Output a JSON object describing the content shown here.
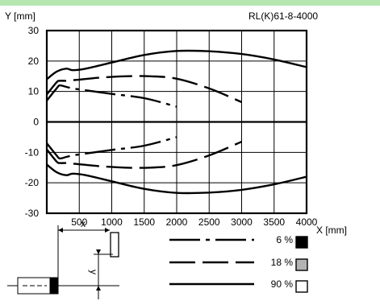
{
  "header": {
    "model": "RL(K)61-8-4000"
  },
  "colors": {
    "top_bar": "#b5e6b0",
    "axis": "#000000",
    "grid": "#000000",
    "box_6": "#000000",
    "box_18": "#b3b3b3",
    "box_90": "#ffffff"
  },
  "chart_data": {
    "type": "line",
    "title": "",
    "xlabel": "X [mm]",
    "ylabel": "Y [mm]",
    "xlim": [
      0,
      4000
    ],
    "ylim": [
      -30,
      30
    ],
    "x_ticks": [
      "500",
      "1000",
      "1500",
      "2000",
      "2500",
      "3000",
      "3500",
      "4000"
    ],
    "y_ticks": [
      "30",
      "20",
      "10",
      "0",
      "-10",
      "-20",
      "-30"
    ],
    "grid": true,
    "series": [
      {
        "name": "6 %",
        "style": "dash-dot",
        "upper": [
          [
            0,
            7
          ],
          [
            150,
            11
          ],
          [
            200,
            12
          ],
          [
            300,
            11.5
          ],
          [
            400,
            11
          ],
          [
            600,
            10.4
          ],
          [
            1000,
            9.2
          ],
          [
            1500,
            7.8
          ],
          [
            2000,
            5
          ]
        ],
        "lower": [
          [
            0,
            -7
          ],
          [
            150,
            -11
          ],
          [
            200,
            -12
          ],
          [
            300,
            -11.5
          ],
          [
            400,
            -11
          ],
          [
            600,
            -10.4
          ],
          [
            1000,
            -9.2
          ],
          [
            1500,
            -7.8
          ],
          [
            2000,
            -5
          ]
        ]
      },
      {
        "name": "18 %",
        "style": "dashed",
        "upper": [
          [
            0,
            9
          ],
          [
            150,
            13
          ],
          [
            200,
            13.5
          ],
          [
            300,
            13.5
          ],
          [
            450,
            13.8
          ],
          [
            800,
            14.5
          ],
          [
            1200,
            15
          ],
          [
            1600,
            15
          ],
          [
            2000,
            14.2
          ],
          [
            2500,
            11
          ],
          [
            3000,
            6.5
          ]
        ],
        "lower": [
          [
            0,
            -9
          ],
          [
            150,
            -13
          ],
          [
            200,
            -13.5
          ],
          [
            300,
            -13.5
          ],
          [
            450,
            -13.8
          ],
          [
            800,
            -14.5
          ],
          [
            1200,
            -15
          ],
          [
            1600,
            -15
          ],
          [
            2000,
            -14.2
          ],
          [
            2500,
            -11
          ],
          [
            3000,
            -6.5
          ]
        ]
      },
      {
        "name": "90 %",
        "style": "solid",
        "upper": [
          [
            0,
            14
          ],
          [
            150,
            16.5
          ],
          [
            300,
            17.5
          ],
          [
            400,
            17
          ],
          [
            600,
            17.5
          ],
          [
            1000,
            19.5
          ],
          [
            1500,
            22
          ],
          [
            2000,
            23.3
          ],
          [
            2500,
            23.2
          ],
          [
            3000,
            22.3
          ],
          [
            3500,
            20.5
          ],
          [
            4000,
            18
          ]
        ],
        "lower": [
          [
            0,
            -14
          ],
          [
            150,
            -16.5
          ],
          [
            300,
            -17.5
          ],
          [
            400,
            -17
          ],
          [
            600,
            -17.5
          ],
          [
            1000,
            -19.5
          ],
          [
            1500,
            -22
          ],
          [
            2000,
            -23.3
          ],
          [
            2500,
            -23.2
          ],
          [
            3000,
            -22.3
          ],
          [
            3500,
            -20.5
          ],
          [
            4000,
            -18
          ]
        ]
      }
    ],
    "legend": [
      {
        "label": "6 %",
        "style": "dash-dot",
        "box_color": "#000000"
      },
      {
        "label": "18 %",
        "style": "dashed",
        "box_color": "#b3b3b3"
      },
      {
        "label": "90 %",
        "style": "solid",
        "box_color": "#ffffff"
      }
    ]
  },
  "diagram": {
    "x_label": "x",
    "y_label": "y"
  }
}
